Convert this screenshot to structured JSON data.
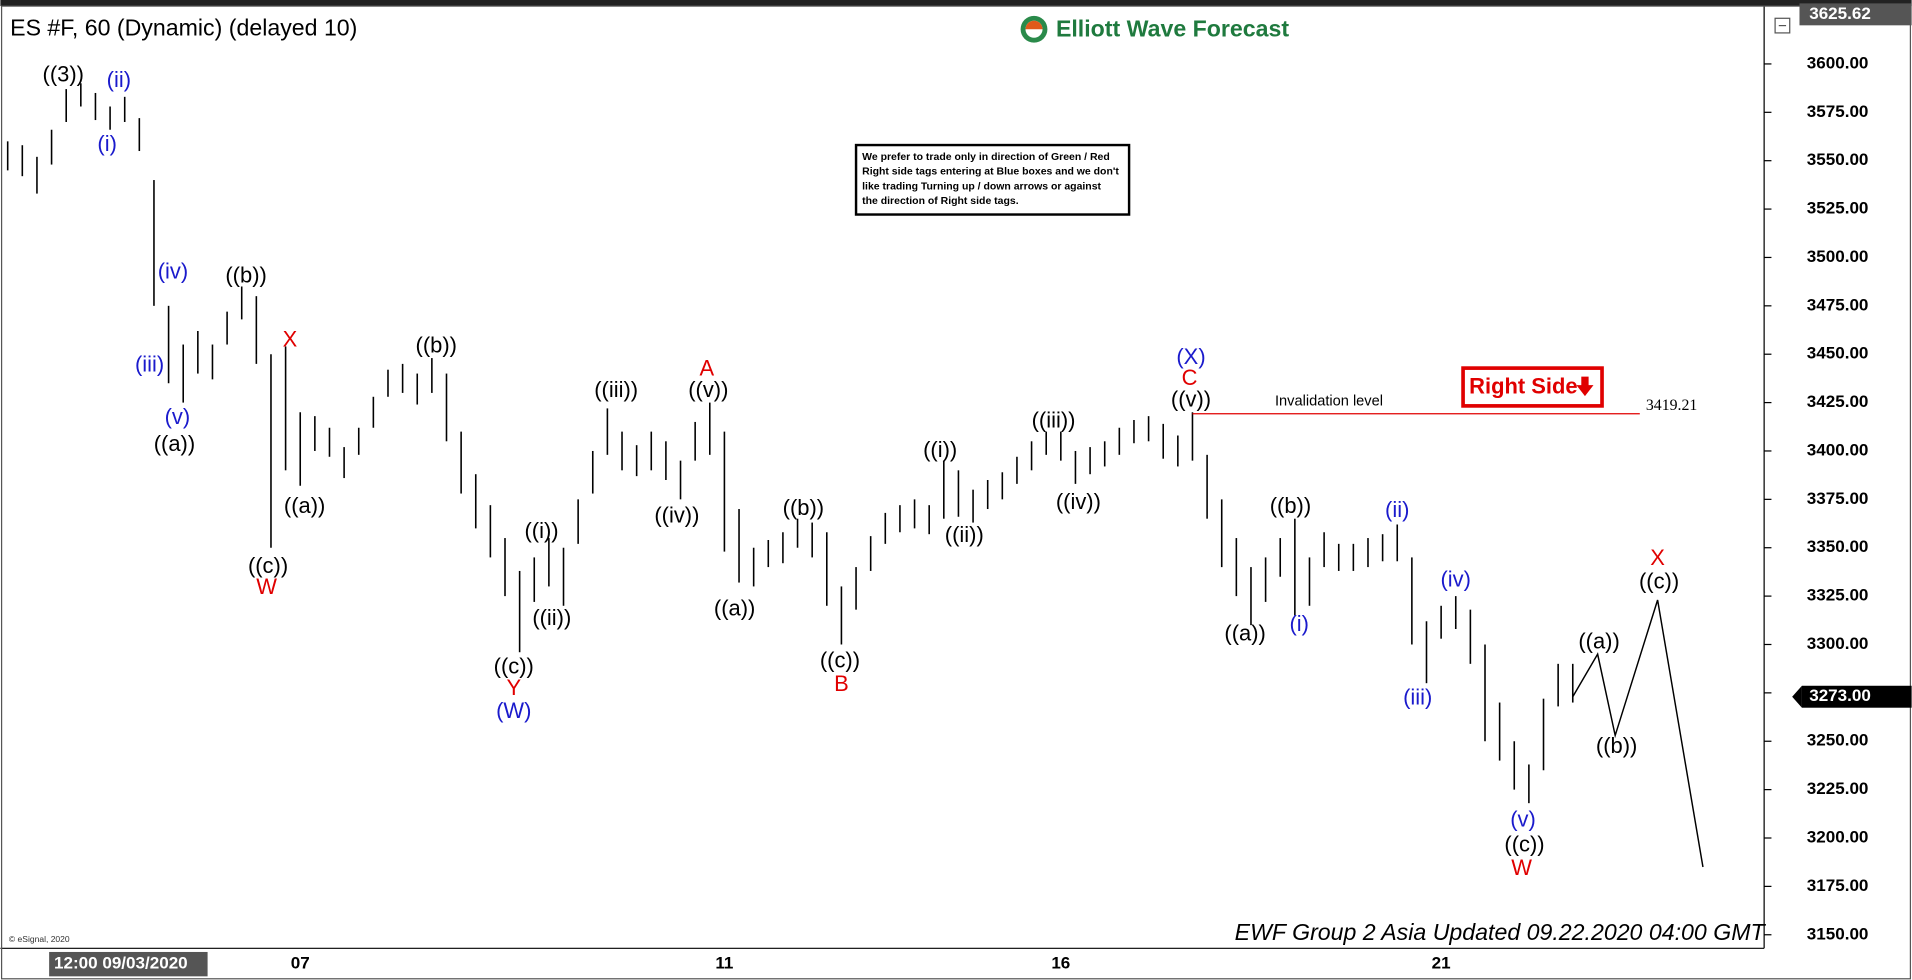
{
  "chart_data": {
    "type": "hilo",
    "title": "ES #F, 60 (Dynamic) (delayed 10)",
    "brand": "Elliott Wave Forecast",
    "footer": "EWF Group 2 Asia Updated 09.22.2020 04:00 GMT",
    "copyright": "© eSignal, 2020",
    "start_label": "12:00 09/03/2020",
    "note": [
      "We prefer to trade only in direction of Green / Red",
      "Right side tags entering at Blue boxes and we don't",
      "like trading Turning up / down arrows or against",
      "the direction of Right side tags."
    ],
    "right_side": {
      "text": "Right Side",
      "color": "#e00000"
    },
    "bar_color": "#000000",
    "ylim": [
      3143,
      3628
    ],
    "yticks": [
      {
        "value": 3150,
        "label": "3150.00"
      },
      {
        "value": 3175,
        "label": "3175.00"
      },
      {
        "value": 3200,
        "label": "3200.00"
      },
      {
        "value": 3225,
        "label": "3225.00"
      },
      {
        "value": 3250,
        "label": "3250.00"
      },
      {
        "value": 3275,
        "label": "3275.00"
      },
      {
        "value": 3300,
        "label": "3300.00"
      },
      {
        "value": 3325,
        "label": "3325.00"
      },
      {
        "value": 3350,
        "label": "3350.00"
      },
      {
        "value": 3375,
        "label": "3375.00"
      },
      {
        "value": 3400,
        "label": "3400.00"
      },
      {
        "value": 3425,
        "label": "3425.00"
      },
      {
        "value": 3450,
        "label": "3450.00"
      },
      {
        "value": 3475,
        "label": "3475.00"
      },
      {
        "value": 3500,
        "label": "3500.00"
      },
      {
        "value": 3525,
        "label": "3525.00"
      },
      {
        "value": 3550,
        "label": "3550.00"
      },
      {
        "value": 3575,
        "label": "3575.00"
      },
      {
        "value": 3600,
        "label": "3600.00"
      }
    ],
    "grid": false,
    "top_price": {
      "value": 3625.62,
      "label": "3625.62"
    },
    "last_price": {
      "value": 3273,
      "label": "3273.00"
    },
    "invalidation": {
      "value": 3419.21,
      "label": "3419.21",
      "text": "Invalidation level",
      "from": 81,
      "color": "#e00000"
    },
    "categories": [
      null,
      null,
      null,
      null,
      null,
      null,
      null,
      null,
      null,
      null,
      null,
      null,
      null,
      null,
      null,
      null,
      null,
      null,
      null,
      null,
      "07",
      null,
      null,
      null,
      null,
      null,
      null,
      null,
      null,
      null,
      null,
      null,
      null,
      null,
      null,
      null,
      null,
      null,
      null,
      null,
      null,
      null,
      null,
      null,
      null,
      null,
      null,
      null,
      null,
      "11",
      null,
      null,
      null,
      null,
      null,
      null,
      null,
      null,
      null,
      null,
      null,
      null,
      null,
      null,
      null,
      null,
      null,
      null,
      null,
      null,
      null,
      null,
      "16",
      null,
      null,
      null,
      null,
      null,
      null,
      null,
      null,
      null,
      null,
      null,
      null,
      null,
      null,
      null,
      null,
      null,
      null,
      null,
      null,
      null,
      null,
      null,
      null,
      null,
      "21",
      null,
      null,
      null,
      null,
      null,
      null,
      null,
      null,
      null,
      null,
      null,
      null,
      null,
      null,
      null,
      null,
      null,
      null,
      null,
      null,
      null
    ],
    "high": [
      3560,
      3558,
      3552,
      3566,
      3587,
      3590,
      3585,
      3578,
      3583,
      3572,
      3540,
      3475,
      3455,
      3462,
      3455,
      3472,
      3485,
      3480,
      3450,
      3454,
      3420,
      3418,
      3412,
      3402,
      3412,
      3428,
      3442,
      3445,
      3440,
      3448,
      3440,
      3410,
      3388,
      3372,
      3355,
      3338,
      3345,
      3355,
      3350,
      3375,
      3400,
      3422,
      3410,
      3403,
      3410,
      3405,
      3395,
      3415,
      3425,
      3410,
      3370,
      3350,
      3354,
      3358,
      3365,
      3363,
      3358,
      3330,
      3340,
      3356,
      3368,
      3372,
      3375,
      3372,
      3395,
      3390,
      3380,
      3385,
      3389,
      3397,
      3405,
      3410,
      3410,
      3400,
      3402,
      3405,
      3412,
      3416,
      3418,
      3414,
      3408,
      3420,
      3398,
      3375,
      3355,
      3340,
      3345,
      3355,
      3365,
      3345,
      3358,
      3352,
      3352,
      3355,
      3357,
      3362,
      3345,
      3312,
      3320,
      3325,
      3318,
      3300,
      3270,
      3250,
      3238,
      3272,
      3290,
      3290,
      null,
      null,
      null,
      null,
      null,
      null,
      null,
      null,
      null,
      null,
      null,
      null
    ],
    "low": [
      3545,
      3542,
      3533,
      3548,
      3570,
      3578,
      3571,
      3566,
      3570,
      3555,
      3475,
      3435,
      3425,
      3440,
      3437,
      3455,
      3468,
      3445,
      3350,
      3390,
      3382,
      3400,
      3397,
      3386,
      3398,
      3412,
      3428,
      3430,
      3424,
      3430,
      3405,
      3378,
      3360,
      3345,
      3325,
      3296,
      3322,
      3330,
      3320,
      3352,
      3378,
      3398,
      3390,
      3387,
      3390,
      3385,
      3375,
      3395,
      3398,
      3348,
      3332,
      3330,
      3340,
      3342,
      3350,
      3345,
      3320,
      3300,
      3318,
      3338,
      3352,
      3358,
      3360,
      3357,
      3365,
      3366,
      3363,
      3370,
      3375,
      3383,
      3390,
      3398,
      3395,
      3383,
      3388,
      3392,
      3398,
      3404,
      3405,
      3396,
      3392,
      3395,
      3365,
      3340,
      3325,
      3310,
      3322,
      3335,
      3315,
      3320,
      3340,
      3338,
      3338,
      3340,
      3343,
      3343,
      3300,
      3280,
      3303,
      3308,
      3290,
      3250,
      3240,
      3225,
      3218,
      3235,
      3268,
      3270,
      null,
      null,
      null,
      null,
      null,
      null,
      null,
      null,
      null,
      null,
      null,
      null
    ],
    "projection": {
      "x": [
        107,
        108.7,
        109.9,
        112.8,
        115.9
      ],
      "values": [
        3273,
        3295,
        3253,
        3323,
        3185
      ],
      "color": "#000000"
    },
    "annotations": [
      {
        "text": "((3))",
        "color": "#000000",
        "x": 3.8,
        "y": 3594
      },
      {
        "text": "(ii)",
        "color": "#1a1acc",
        "x": 7.6,
        "y": 3591
      },
      {
        "text": "(i)",
        "color": "#1a1acc",
        "x": 6.8,
        "y": 3558
      },
      {
        "text": "(iv)",
        "color": "#1a1acc",
        "x": 11.3,
        "y": 3492
      },
      {
        "text": "(iii)",
        "color": "#1a1acc",
        "x": 9.7,
        "y": 3444
      },
      {
        "text": "(v)",
        "color": "#1a1acc",
        "x": 11.6,
        "y": 3417
      },
      {
        "text": "((a))",
        "color": "#000000",
        "x": 11.4,
        "y": 3403
      },
      {
        "text": "((b))",
        "color": "#000000",
        "x": 16.3,
        "y": 3490
      },
      {
        "text": "X",
        "color": "#e00000",
        "x": 19.3,
        "y": 3457
      },
      {
        "text": "((a))",
        "color": "#000000",
        "x": 20.3,
        "y": 3371
      },
      {
        "text": "((c))",
        "color": "#000000",
        "x": 17.8,
        "y": 3340
      },
      {
        "text": "W",
        "color": "#e00000",
        "x": 17.7,
        "y": 3329
      },
      {
        "text": "((b))",
        "color": "#000000",
        "x": 29.3,
        "y": 3454
      },
      {
        "text": "((c))",
        "color": "#000000",
        "x": 34.6,
        "y": 3288
      },
      {
        "text": "Y",
        "color": "#e00000",
        "x": 34.6,
        "y": 3277
      },
      {
        "text": "(W)",
        "color": "#1a1acc",
        "x": 34.6,
        "y": 3265
      },
      {
        "text": "((i))",
        "color": "#000000",
        "x": 36.5,
        "y": 3358
      },
      {
        "text": "((ii))",
        "color": "#000000",
        "x": 37.2,
        "y": 3313
      },
      {
        "text": "((iii))",
        "color": "#000000",
        "x": 41.6,
        "y": 3431
      },
      {
        "text": "((iv))",
        "color": "#000000",
        "x": 45.75,
        "y": 3366
      },
      {
        "text": "A",
        "color": "#e00000",
        "x": 47.8,
        "y": 3442
      },
      {
        "text": "((v))",
        "color": "#000000",
        "x": 47.9,
        "y": 3431
      },
      {
        "text": "((a))",
        "color": "#000000",
        "x": 49.7,
        "y": 3318
      },
      {
        "text": "((b))",
        "color": "#000000",
        "x": 54.4,
        "y": 3370
      },
      {
        "text": "((c))",
        "color": "#000000",
        "x": 56.9,
        "y": 3291
      },
      {
        "text": "B",
        "color": "#e00000",
        "x": 57,
        "y": 3279
      },
      {
        "text": "((i))",
        "color": "#000000",
        "x": 63.75,
        "y": 3400
      },
      {
        "text": "((ii))",
        "color": "#000000",
        "x": 65.4,
        "y": 3356
      },
      {
        "text": "((iii))",
        "color": "#000000",
        "x": 71.5,
        "y": 3415
      },
      {
        "text": "((iv))",
        "color": "#000000",
        "x": 73.2,
        "y": 3373
      },
      {
        "text": "(X)",
        "color": "#1a1acc",
        "x": 80.9,
        "y": 3448
      },
      {
        "text": "C",
        "color": "#e00000",
        "x": 80.8,
        "y": 3437
      },
      {
        "text": "((v))",
        "color": "#000000",
        "x": 80.9,
        "y": 3426
      },
      {
        "text": "((a))",
        "color": "#000000",
        "x": 84.6,
        "y": 3305
      },
      {
        "text": "((b))",
        "color": "#000000",
        "x": 87.7,
        "y": 3371
      },
      {
        "text": "(i)",
        "color": "#1a1acc",
        "x": 88.3,
        "y": 3310
      },
      {
        "text": "(ii)",
        "color": "#1a1acc",
        "x": 95,
        "y": 3369
      },
      {
        "text": "(iii)",
        "color": "#1a1acc",
        "x": 96.4,
        "y": 3272
      },
      {
        "text": "(iv)",
        "color": "#1a1acc",
        "x": 99,
        "y": 3333
      },
      {
        "text": "(v)",
        "color": "#1a1acc",
        "x": 103.6,
        "y": 3209
      },
      {
        "text": "((c))",
        "color": "#000000",
        "x": 103.7,
        "y": 3196
      },
      {
        "text": "W",
        "color": "#e00000",
        "x": 103.5,
        "y": 3184
      },
      {
        "text": "((a))",
        "color": "#000000",
        "x": 108.8,
        "y": 3301
      },
      {
        "text": "((b))",
        "color": "#000000",
        "x": 110,
        "y": 3247
      },
      {
        "text": "X",
        "color": "#e00000",
        "x": 112.8,
        "y": 3344
      },
      {
        "text": "((c))",
        "color": "#000000",
        "x": 112.9,
        "y": 3332
      }
    ]
  }
}
